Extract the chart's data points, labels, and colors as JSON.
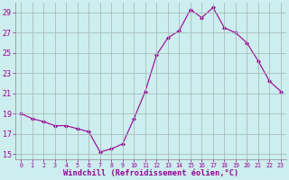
{
  "x": [
    0,
    1,
    2,
    3,
    4,
    5,
    6,
    7,
    8,
    9,
    10,
    11,
    12,
    13,
    14,
    15,
    16,
    17,
    18,
    19,
    20,
    21,
    22,
    23
  ],
  "y": [
    19.0,
    18.5,
    18.2,
    17.8,
    17.8,
    17.5,
    17.2,
    15.2,
    15.5,
    16.0,
    18.5,
    21.2,
    24.8,
    26.5,
    27.2,
    29.3,
    28.5,
    29.5,
    27.5,
    27.0,
    26.0,
    24.2,
    22.2,
    21.2
  ],
  "line_color": "#990099",
  "marker": "D",
  "marker_size": 2.0,
  "bg_color": "#cceeee",
  "grid_color": "#aabbbb",
  "tick_color": "#990099",
  "label_color": "#990099",
  "xlabel": "Windchill (Refroidissement éolien,°C)",
  "ylim": [
    14.5,
    30.0
  ],
  "xlim": [
    -0.5,
    23.5
  ],
  "yticks": [
    15,
    17,
    19,
    21,
    23,
    25,
    27,
    29
  ],
  "xticks": [
    0,
    1,
    2,
    3,
    4,
    5,
    6,
    7,
    8,
    9,
    10,
    11,
    12,
    13,
    14,
    15,
    16,
    17,
    18,
    19,
    20,
    21,
    22,
    23
  ],
  "font_family": "monospace",
  "xtick_fontsize": 4.8,
  "ytick_fontsize": 6.0,
  "xlabel_fontsize": 6.2
}
